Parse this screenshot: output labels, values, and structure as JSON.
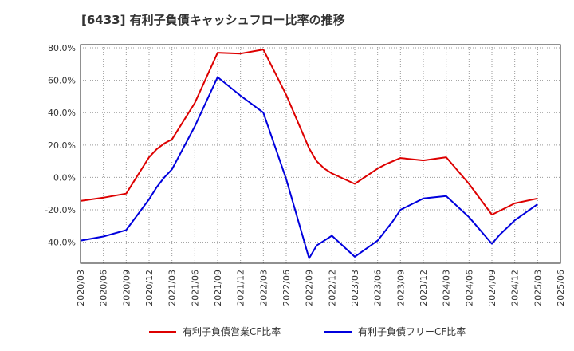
{
  "chart_data": {
    "type": "line",
    "title": "[6433]  有利子負債キャッシュフロー比率の推移",
    "xlabel": "",
    "ylabel": "",
    "ylim": [
      -53,
      82
    ],
    "yticks": [
      80,
      60,
      40,
      20,
      0,
      -20,
      -40
    ],
    "ytick_labels": [
      "80.0%",
      "60.0%",
      "40.0%",
      "20.0%",
      "0.0%",
      "-20.0%",
      "-40.0%"
    ],
    "xticks": [
      "2020/03",
      "2020/06",
      "2020/09",
      "2020/12",
      "2021/03",
      "2021/06",
      "2021/09",
      "2021/12",
      "2022/03",
      "2022/06",
      "2022/09",
      "2022/12",
      "2023/03",
      "2023/06",
      "2023/09",
      "2023/12",
      "2024/03",
      "2024/06",
      "2024/09",
      "2024/12",
      "2025/03",
      "2025/06"
    ],
    "grid": true,
    "legend_position": "bottom",
    "series": [
      {
        "name": "有利子負債営業CF比率",
        "color": "#dd0000",
        "points": [
          [
            "2020/03",
            -14.5
          ],
          [
            "2020/06",
            -12.5
          ],
          [
            "2020/09",
            -10.0
          ],
          [
            "2020/12",
            12.5
          ],
          [
            "2021/01",
            17.5
          ],
          [
            "2021/02",
            21.0
          ],
          [
            "2021/03",
            23.5
          ],
          [
            "2021/06",
            46.0
          ],
          [
            "2021/09",
            77.0
          ],
          [
            "2021/12",
            76.5
          ],
          [
            "2022/03",
            79.0
          ],
          [
            "2022/06",
            51.0
          ],
          [
            "2022/09",
            18.0
          ],
          [
            "2022/10",
            10.0
          ],
          [
            "2022/11",
            5.5
          ],
          [
            "2022/12",
            2.5
          ],
          [
            "2023/03",
            -4.0
          ],
          [
            "2023/06",
            5.5
          ],
          [
            "2023/07",
            8.0
          ],
          [
            "2023/09",
            12.0
          ],
          [
            "2023/12",
            10.5
          ],
          [
            "2024/03",
            12.5
          ],
          [
            "2024/06",
            -4.0
          ],
          [
            "2024/09",
            -23.0
          ],
          [
            "2024/12",
            -16.0
          ],
          [
            "2025/03",
            -13.0
          ]
        ]
      },
      {
        "name": "有利子負債フリーCF比率",
        "color": "#0000dd",
        "points": [
          [
            "2020/03",
            -39.0
          ],
          [
            "2020/06",
            -36.5
          ],
          [
            "2020/09",
            -32.5
          ],
          [
            "2020/12",
            -13.5
          ],
          [
            "2021/01",
            -6.0
          ],
          [
            "2021/02",
            0.0
          ],
          [
            "2021/03",
            5.0
          ],
          [
            "2021/06",
            31.5
          ],
          [
            "2021/09",
            62.0
          ],
          [
            "2021/12",
            50.5
          ],
          [
            "2022/03",
            40.0
          ],
          [
            "2022/06",
            -1.0
          ],
          [
            "2022/09",
            -50.0
          ],
          [
            "2022/10",
            -42.0
          ],
          [
            "2022/12",
            -36.0
          ],
          [
            "2023/03",
            -49.0
          ],
          [
            "2023/06",
            -39.0
          ],
          [
            "2023/08",
            -27.0
          ],
          [
            "2023/09",
            -20.0
          ],
          [
            "2023/12",
            -13.0
          ],
          [
            "2024/03",
            -11.5
          ],
          [
            "2024/06",
            -24.5
          ],
          [
            "2024/09",
            -41.0
          ],
          [
            "2024/10",
            -35.5
          ],
          [
            "2024/12",
            -26.5
          ],
          [
            "2025/03",
            -16.5
          ]
        ]
      }
    ]
  }
}
